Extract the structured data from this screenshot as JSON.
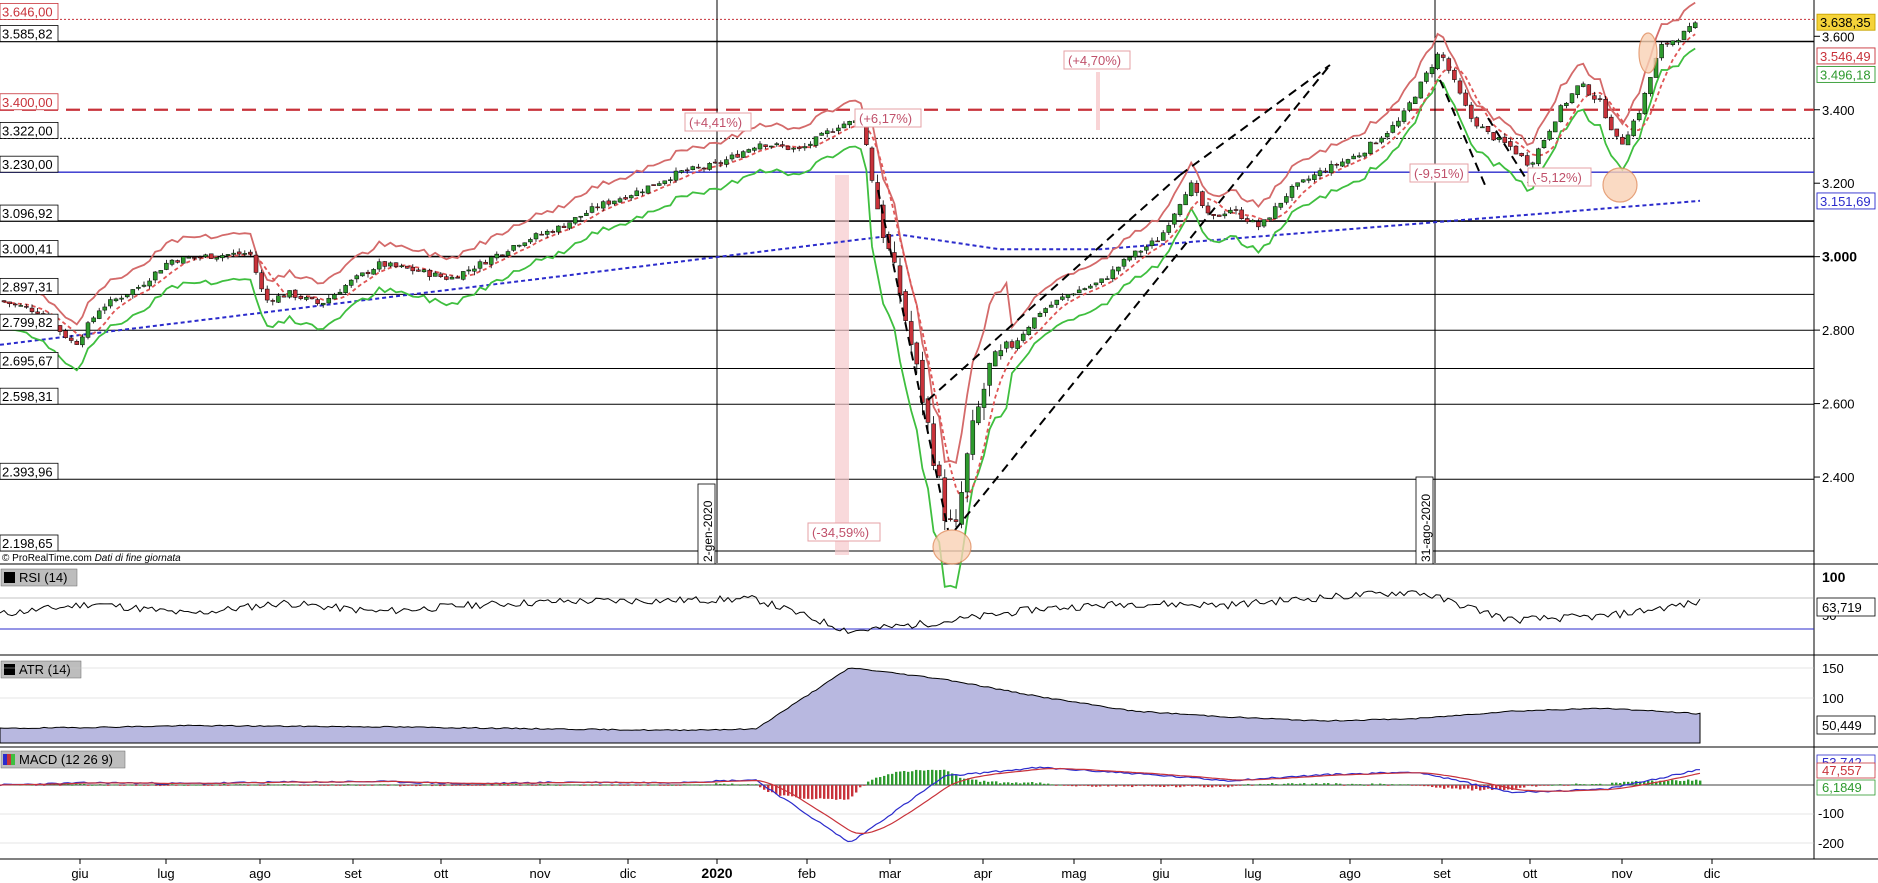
{
  "source": {
    "brand": "© ProRealTime.com",
    "note": "Dati di fine giornata"
  },
  "price_panel": {
    "left_levels": [
      "3.646,00",
      "3.585,82",
      "3.400,00",
      "3.322,00",
      "3.230,00",
      "3.096,92",
      "3.000,41",
      "2.897,31",
      "2.799,82",
      "2.695,67",
      "2.598,31",
      "2.393,96",
      "2.198,65"
    ],
    "right_badges": [
      {
        "text": "3.638,35",
        "bg": "#f5d33a",
        "fg": "#000"
      },
      {
        "text": "3.546,49",
        "bg": "#ffffff",
        "fg": "#c8323a"
      },
      {
        "text": "3.496,18",
        "bg": "#ffffff",
        "fg": "#2e9a2e"
      },
      {
        "text": "3.151,69",
        "bg": "#ffffff",
        "fg": "#2b2bcc"
      }
    ],
    "right_axis_ticks": [
      "3.600",
      "3.400",
      "3.200",
      "3.000",
      "2.800",
      "2.600",
      "2.400"
    ],
    "annotations": [
      "(+4,41%)",
      "(+6,17%)",
      "(+4,70%)",
      "(-34,59%)",
      "(-9,51%)",
      "(-5,12%)"
    ],
    "vertical_dates": [
      "2-gen-2020",
      "31-ago-2020"
    ]
  },
  "indicators": {
    "rsi": {
      "title": "RSI (14)",
      "value": "63,719",
      "ticks": [
        "100",
        "50"
      ]
    },
    "atr": {
      "title": "ATR (14)",
      "value": "50,449",
      "ticks": [
        "150",
        "100"
      ]
    },
    "macd": {
      "title": "MACD (12 26 9)",
      "values": [
        "53,742",
        "47,557",
        "6,1849"
      ],
      "ticks": [
        "-100",
        "-200"
      ]
    }
  },
  "x_axis": {
    "labels": [
      "giu",
      "lug",
      "ago",
      "set",
      "ott",
      "nov",
      "dic",
      "2020",
      "feb",
      "mar",
      "apr",
      "mag",
      "giu",
      "lug",
      "ago",
      "set",
      "ott",
      "nov",
      "dic"
    ]
  },
  "colors": {
    "up": "#2e9a2e",
    "down": "#c8323a",
    "sma_red": "#e05555",
    "supertrend_red": "#d46a6a",
    "supertrend_green": "#3fbf3f",
    "sma200": "#2b2bcc",
    "level_red": "#c8323a"
  },
  "chart_data": [
    {
      "type": "line",
      "title": "",
      "xlabel": "",
      "ylabel": "",
      "ylim": [
        2190,
        3660
      ],
      "x": [
        "giu",
        "lug",
        "ago",
        "set",
        "ott",
        "nov",
        "dic",
        "2020",
        "feb",
        "mar",
        "apr",
        "mag",
        "giu",
        "lug",
        "ago",
        "set",
        "ott",
        "nov",
        "dic"
      ],
      "series": [
        {
          "values": [
            2800,
            2930,
            2950,
            2930,
            2990,
            3080,
            3190,
            3250,
            3320,
            2500,
            2750,
            2900,
            3120,
            3100,
            3250,
            3480,
            3380,
            3300,
            3638
          ]
        }
      ],
      "levels": [
        3646.0,
        3585.82,
        3400.0,
        3322.0,
        3230.0,
        3096.92,
        3000.41,
        2897.31,
        2799.82,
        2695.67,
        2598.31,
        2393.96,
        2198.65
      ]
    },
    {
      "type": "line",
      "ylim": [
        0,
        100
      ],
      "series": [
        {
          "values": [
            48,
            62,
            48,
            63,
            51,
            60,
            65,
            66,
            68,
            25,
            38,
            55,
            62,
            60,
            70,
            78,
            40,
            45,
            63.7
          ]
        }
      ]
    },
    {
      "type": "area",
      "ylim": [
        0,
        150
      ],
      "series": [
        {
          "values": [
            25,
            27,
            30,
            29,
            28,
            26,
            24,
            22,
            24,
            130,
            110,
            80,
            55,
            45,
            38,
            42,
            55,
            60,
            50.4
          ]
        }
      ]
    },
    {
      "type": "bar",
      "ylim": [
        -230,
        80
      ],
      "series": [
        {
          "values": [
            0,
            5,
            2,
            3,
            4,
            -1,
            3,
            1,
            5,
            -30,
            40,
            30,
            20,
            5,
            15,
            20,
            -10,
            -8,
            6.2
          ]
        }
      ]
    }
  ]
}
